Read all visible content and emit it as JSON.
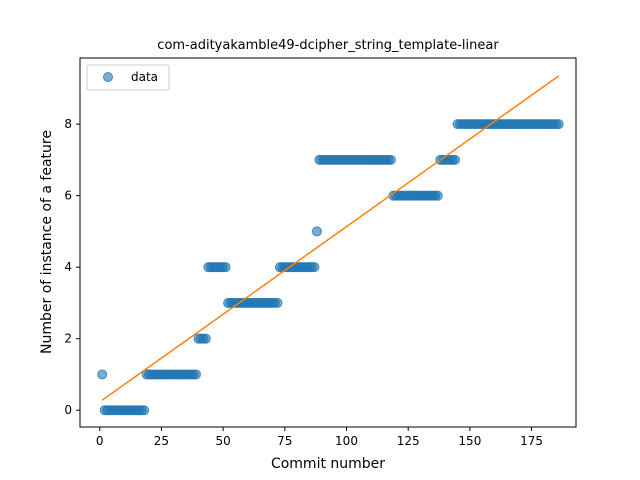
{
  "chart_data": {
    "type": "scatter",
    "title": "com-adityakamble49-dcipher_string_template-linear",
    "xlabel": "Commit number",
    "ylabel": "Number of instance of a feature",
    "xlim": [
      -8,
      193
    ],
    "ylim": [
      -0.47,
      9.85
    ],
    "xticks": [
      0,
      25,
      50,
      75,
      100,
      125,
      150,
      175
    ],
    "yticks": [
      0,
      2,
      4,
      6,
      8
    ],
    "grid": false,
    "legend": {
      "position": "top-left",
      "entries": [
        "data"
      ]
    },
    "series": [
      {
        "name": "data",
        "kind": "points",
        "color": "#1f77b4",
        "segments": [
          {
            "x_start": 1,
            "x_end": 1,
            "y": 1
          },
          {
            "x_start": 2,
            "x_end": 18,
            "y": 0
          },
          {
            "x_start": 19,
            "x_end": 39,
            "y": 1
          },
          {
            "x_start": 40,
            "x_end": 43,
            "y": 2
          },
          {
            "x_start": 44,
            "x_end": 51,
            "y": 4
          },
          {
            "x_start": 52,
            "x_end": 72,
            "y": 3
          },
          {
            "x_start": 73,
            "x_end": 87,
            "y": 4
          },
          {
            "x_start": 88,
            "x_end": 88,
            "y": 5
          },
          {
            "x_start": 89,
            "x_end": 118,
            "y": 7
          },
          {
            "x_start": 119,
            "x_end": 137,
            "y": 6
          },
          {
            "x_start": 138,
            "x_end": 144,
            "y": 7
          },
          {
            "x_start": 145,
            "x_end": 186,
            "y": 8
          }
        ]
      },
      {
        "kind": "line",
        "color": "#ff7f0e",
        "x": [
          1,
          186
        ],
        "y": [
          0.28,
          9.35
        ]
      }
    ]
  }
}
